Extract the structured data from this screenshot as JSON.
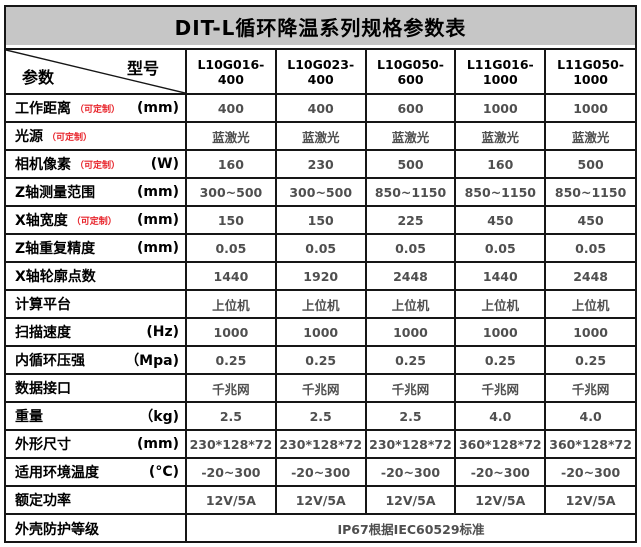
{
  "title": "DIT-L循环降温系列规格参数表",
  "header": {
    "corner_top": "型号",
    "corner_bottom": "参数",
    "models": [
      "L10G016-400",
      "L10G023-400",
      "L10G050-600",
      "L11G016-1000",
      "L11G050-1000"
    ]
  },
  "rows": [
    {
      "label": "工作距离",
      "note": "（可定制）",
      "unit": "(mm)",
      "values": [
        "400",
        "400",
        "600",
        "1000",
        "1000"
      ]
    },
    {
      "label": "光源",
      "note": "（可定制）",
      "unit": "",
      "values": [
        "蓝激光",
        "蓝激光",
        "蓝激光",
        "蓝激光",
        "蓝激光"
      ]
    },
    {
      "label": "相机像素",
      "note": "（可定制）",
      "unit": "(W)",
      "values": [
        "160",
        "230",
        "500",
        "160",
        "500"
      ]
    },
    {
      "label": "Z轴测量范围",
      "note": "",
      "unit": "(mm)",
      "values": [
        "300~500",
        "300~500",
        "850~1150",
        "850~1150",
        "850~1150"
      ]
    },
    {
      "label": "X轴宽度",
      "note": "（可定制）",
      "unit": "(mm)",
      "values": [
        "150",
        "150",
        "225",
        "450",
        "450"
      ]
    },
    {
      "label": "Z轴重复精度",
      "note": "",
      "unit": "(mm)",
      "values": [
        "0.05",
        "0.05",
        "0.05",
        "0.05",
        "0.05"
      ]
    },
    {
      "label": "X轴轮廓点数",
      "note": "",
      "unit": "",
      "values": [
        "1440",
        "1920",
        "2448",
        "1440",
        "2448"
      ]
    },
    {
      "label": "计算平台",
      "note": "",
      "unit": "",
      "values": [
        "上位机",
        "上位机",
        "上位机",
        "上位机",
        "上位机"
      ]
    },
    {
      "label": "扫描速度",
      "note": "",
      "unit": "(Hz)",
      "values": [
        "1000",
        "1000",
        "1000",
        "1000",
        "1000"
      ]
    },
    {
      "label": "内循环压强",
      "note": "",
      "unit": "（Mpa)",
      "values": [
        "0.25",
        "0.25",
        "0.25",
        "0.25",
        "0.25"
      ]
    },
    {
      "label": "数据接口",
      "note": "",
      "unit": "",
      "values": [
        "千兆网",
        "千兆网",
        "千兆网",
        "千兆网",
        "千兆网"
      ]
    },
    {
      "label": "重量",
      "note": "",
      "unit": "（kg)",
      "values": [
        "2.5",
        "2.5",
        "2.5",
        "4.0",
        "4.0"
      ]
    },
    {
      "label": "外形尺寸",
      "note": "",
      "unit": "(mm)",
      "values": [
        "230*128*72",
        "230*128*72",
        "230*128*72",
        "360*128*72",
        "360*128*72"
      ]
    },
    {
      "label": "适用环境温度",
      "note": "",
      "unit": "(°C)",
      "values": [
        "-20~300",
        "-20~300",
        "-20~300",
        "-20~300",
        "-20~300"
      ]
    },
    {
      "label": "额定功率",
      "note": "",
      "unit": "",
      "values": [
        "12V/5A",
        "12V/5A",
        "12V/5A",
        "12V/5A",
        "12V/5A"
      ]
    },
    {
      "label": "外壳防护等级",
      "note": "",
      "unit": "",
      "merged": "IP67根据IEC60529标准"
    }
  ],
  "colors": {
    "title_background": "#c6c6c6",
    "border": "#161616",
    "label_text": "#000000",
    "value_text": "#4f4f4f",
    "customizable_red": "#e8262d"
  }
}
